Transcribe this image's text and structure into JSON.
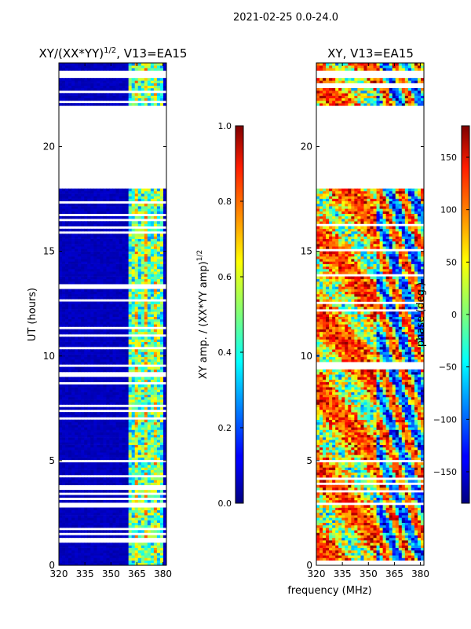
{
  "suptitle": "2021-02-25 0.0-24.0",
  "xlabel": "frequency (MHz)",
  "chart_data": [
    {
      "type": "heatmap",
      "title_main": "XY/(XX*YY)",
      "title_sup": "1/2",
      "title_tail": ", V13=EA15",
      "ylabel": "UT (hours)",
      "xlim": [
        320,
        382
      ],
      "ylim": [
        0,
        24
      ],
      "x_ticks": [
        {
          "value": 320,
          "label": "320"
        },
        {
          "value": 335,
          "label": "335"
        },
        {
          "value": 350,
          "label": "350"
        },
        {
          "value": 365,
          "label": "365"
        },
        {
          "value": 380,
          "label": "380"
        }
      ],
      "y_ticks": [
        {
          "value": 0,
          "label": "0"
        },
        {
          "value": 5,
          "label": "5"
        },
        {
          "value": 10,
          "label": "10"
        },
        {
          "value": 15,
          "label": "15"
        },
        {
          "value": 20,
          "label": "20"
        }
      ],
      "data_gaps_hours": [
        [
          18.0,
          22.0
        ],
        [
          23.3,
          23.7
        ]
      ],
      "colorbar": {
        "label_main": "XY amp. / (XX*YY amp)",
        "label_sup": "1/2",
        "range": [
          0.0,
          1.0
        ],
        "ticks": [
          {
            "value": 0.0,
            "label": "0.0"
          },
          {
            "value": 0.2,
            "label": "0.2"
          },
          {
            "value": 0.4,
            "label": "0.4"
          },
          {
            "value": 0.6,
            "label": "0.6"
          },
          {
            "value": 0.8,
            "label": "0.8"
          },
          {
            "value": 1.0,
            "label": "1.0"
          }
        ]
      }
    },
    {
      "type": "heatmap",
      "title_main": "XY, V13=EA15",
      "ylabel": "",
      "xlim": [
        320,
        382
      ],
      "ylim": [
        0,
        24
      ],
      "x_ticks": [
        {
          "value": 320,
          "label": "320"
        },
        {
          "value": 335,
          "label": "335"
        },
        {
          "value": 350,
          "label": "350"
        },
        {
          "value": 365,
          "label": "365"
        },
        {
          "value": 380,
          "label": "380"
        }
      ],
      "y_ticks": [
        {
          "value": 0,
          "label": "0"
        },
        {
          "value": 5,
          "label": "5"
        },
        {
          "value": 10,
          "label": "10"
        },
        {
          "value": 15,
          "label": "15"
        },
        {
          "value": 20,
          "label": "20"
        }
      ],
      "data_gaps_hours": [
        [
          18.0,
          22.0
        ],
        [
          23.3,
          23.7
        ]
      ],
      "colorbar": {
        "label_main": "phase (deg.)",
        "range": [
          -180,
          180
        ],
        "ticks": [
          {
            "value": -150,
            "label": "−150"
          },
          {
            "value": -100,
            "label": "−100"
          },
          {
            "value": -50,
            "label": "−50"
          },
          {
            "value": 0,
            "label": "0"
          },
          {
            "value": 50,
            "label": "50"
          },
          {
            "value": 100,
            "label": "100"
          },
          {
            "value": 150,
            "label": "150"
          }
        ]
      }
    }
  ]
}
